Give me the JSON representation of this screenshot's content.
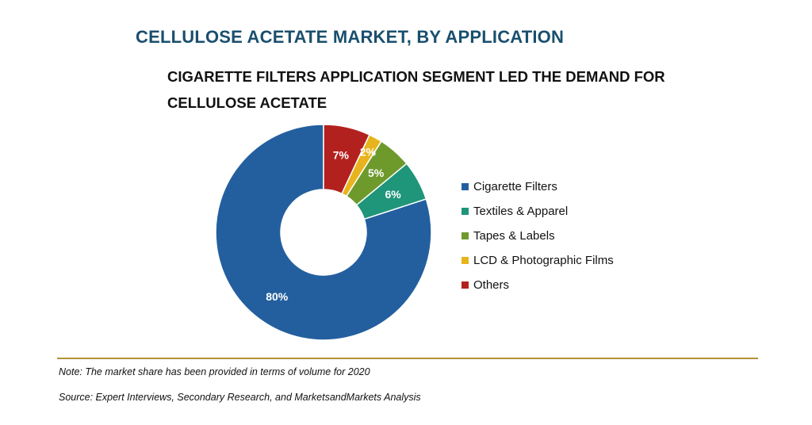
{
  "chart_data": {
    "type": "pie",
    "variant": "donut",
    "title": "CELLULOSE ACETATE MARKET, BY APPLICATION",
    "subtitle": "CIGARETTE FILTERS APPLICATION SEGMENT LED THE DEMAND FOR CELLULOSE ACETATE",
    "unit": "%",
    "legend_position": "right",
    "slices": [
      {
        "name": "Cigarette Filters",
        "value": 80,
        "label": "80%",
        "color": "#235f9e"
      },
      {
        "name": "Textiles & Apparel",
        "value": 6,
        "label": "6%",
        "color": "#1f957a"
      },
      {
        "name": "Tapes & Labels",
        "value": 5,
        "label": "5%",
        "color": "#6e9a2c"
      },
      {
        "name": "LCD & Photographic Films",
        "value": 2,
        "label": "2%",
        "color": "#e8b41d"
      },
      {
        "name": "Others",
        "value": 7,
        "label": "7%",
        "color": "#b3211e"
      }
    ]
  },
  "footer": {
    "note": "Note: The market share has been provided in terms of volume for 2020",
    "source": "Source: Expert Interviews, Secondary Research, and MarketsandMarkets Analysis"
  }
}
